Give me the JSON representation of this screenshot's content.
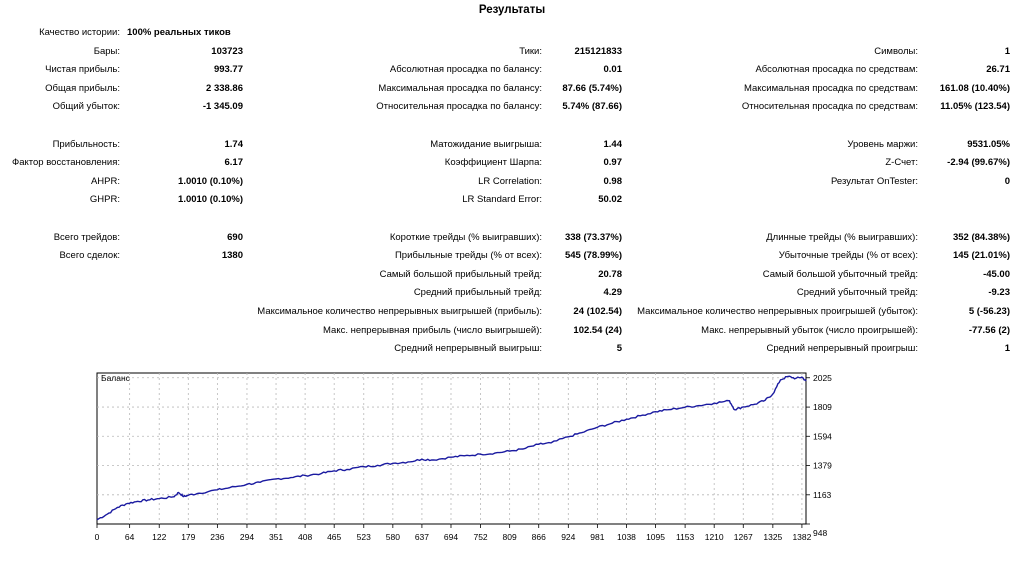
{
  "title": "Результаты",
  "stats": [
    {
      "id": "history-quality",
      "label": "Качество истории:",
      "value": "100% реальных тиков",
      "col": 1,
      "row": 0
    },
    {
      "id": "bars",
      "label": "Бары:",
      "value": "103723",
      "col": 1,
      "row": 1
    },
    {
      "id": "net-profit",
      "label": "Чистая прибыль:",
      "value": "993.77",
      "col": 1,
      "row": 2
    },
    {
      "id": "gross-profit",
      "label": "Общая прибыль:",
      "value": "2 338.86",
      "col": 1,
      "row": 3
    },
    {
      "id": "gross-loss",
      "label": "Общий убыток:",
      "value": "-1 345.09",
      "col": 1,
      "row": 4
    },
    {
      "id": "profit-factor",
      "label": "Прибыльность:",
      "value": "1.74",
      "col": 1,
      "row": 6
    },
    {
      "id": "recovery-factor",
      "label": "Фактор восстановления:",
      "value": "6.17",
      "col": 1,
      "row": 7
    },
    {
      "id": "ahpr",
      "label": "AHPR:",
      "value": "1.0010 (0.10%)",
      "col": 1,
      "row": 8
    },
    {
      "id": "ghpr",
      "label": "GHPR:",
      "value": "1.0010 (0.10%)",
      "col": 1,
      "row": 9
    },
    {
      "id": "total-trades",
      "label": "Всего трейдов:",
      "value": "690",
      "col": 1,
      "row": 11
    },
    {
      "id": "total-deals",
      "label": "Всего сделок:",
      "value": "1380",
      "col": 1,
      "row": 12
    },
    {
      "id": "ticks",
      "label": "Тики:",
      "value": "215121833",
      "col": 2,
      "row": 1
    },
    {
      "id": "balance-dd-abs",
      "label": "Абсолютная просадка по балансу:",
      "value": "0.01",
      "col": 2,
      "row": 2
    },
    {
      "id": "balance-dd-max",
      "label": "Максимальная просадка по балансу:",
      "value": "87.66 (5.74%)",
      "col": 2,
      "row": 3
    },
    {
      "id": "balance-dd-rel",
      "label": "Относительная просадка по балансу:",
      "value": "5.74% (87.66)",
      "col": 2,
      "row": 4
    },
    {
      "id": "expected-payoff",
      "label": "Матожидание выигрыша:",
      "value": "1.44",
      "col": 2,
      "row": 6
    },
    {
      "id": "sharpe",
      "label": "Коэффициент Шарпа:",
      "value": "0.97",
      "col": 2,
      "row": 7
    },
    {
      "id": "lr-correlation",
      "label": "LR Correlation:",
      "value": "0.98",
      "col": 2,
      "row": 8
    },
    {
      "id": "lr-std-error",
      "label": "LR Standard Error:",
      "value": "50.02",
      "col": 2,
      "row": 9
    },
    {
      "id": "short-trades",
      "label": "Короткие трейды (% выигравших):",
      "value": "338 (73.37%)",
      "col": 2,
      "row": 11
    },
    {
      "id": "profit-trades",
      "label": "Прибыльные трейды (% от всех):",
      "value": "545 (78.99%)",
      "col": 2,
      "row": 12
    },
    {
      "id": "largest-profit",
      "label": "Самый большой прибыльный трейд:",
      "value": "20.78",
      "col": 2,
      "row": 13
    },
    {
      "id": "avg-profit",
      "label": "Средний прибыльный трейд:",
      "value": "4.29",
      "col": 2,
      "row": 14
    },
    {
      "id": "max-consec-wins",
      "label": "Максимальное количество непрерывных выигрышей (прибыль):",
      "value": "24 (102.54)",
      "col": 2,
      "row": 15
    },
    {
      "id": "max-consec-profit",
      "label": "Макс. непрерывная прибыль (число выигрышей):",
      "value": "102.54 (24)",
      "col": 2,
      "row": 16
    },
    {
      "id": "avg-consec-wins",
      "label": "Средний непрерывный выигрыш:",
      "value": "5",
      "col": 2,
      "row": 17
    },
    {
      "id": "symbols",
      "label": "Символы:",
      "value": "1",
      "col": 3,
      "row": 1
    },
    {
      "id": "equity-dd-abs",
      "label": "Абсолютная просадка по средствам:",
      "value": "26.71",
      "col": 3,
      "row": 2
    },
    {
      "id": "equity-dd-max",
      "label": "Максимальная просадка по средствам:",
      "value": "161.08 (10.40%)",
      "col": 3,
      "row": 3
    },
    {
      "id": "equity-dd-rel",
      "label": "Относительная просадка по средствам:",
      "value": "11.05% (123.54)",
      "col": 3,
      "row": 4
    },
    {
      "id": "margin-level",
      "label": "Уровень маржи:",
      "value": "9531.05%",
      "col": 3,
      "row": 6
    },
    {
      "id": "z-score",
      "label": "Z-Счет:",
      "value": "-2.94 (99.67%)",
      "col": 3,
      "row": 7
    },
    {
      "id": "ontester",
      "label": "Результат OnTester:",
      "value": "0",
      "col": 3,
      "row": 8
    },
    {
      "id": "long-trades",
      "label": "Длинные трейды (% выигравших):",
      "value": "352 (84.38%)",
      "col": 3,
      "row": 11
    },
    {
      "id": "loss-trades",
      "label": "Убыточные трейды (% от всех):",
      "value": "145 (21.01%)",
      "col": 3,
      "row": 12
    },
    {
      "id": "largest-loss",
      "label": "Самый большой убыточный трейд:",
      "value": "-45.00",
      "col": 3,
      "row": 13
    },
    {
      "id": "avg-loss",
      "label": "Средний убыточный трейд:",
      "value": "-9.23",
      "col": 3,
      "row": 14
    },
    {
      "id": "max-consec-losses",
      "label": "Максимальное количество непрерывных проигрышей (убыток):",
      "value": "5 (-56.23)",
      "col": 3,
      "row": 15
    },
    {
      "id": "max-consec-loss",
      "label": "Макс. непрерывный убыток (число проигрышей):",
      "value": "-77.56 (2)",
      "col": 3,
      "row": 16
    },
    {
      "id": "avg-consec-losses",
      "label": "Средний непрерывный проигрыш:",
      "value": "1",
      "col": 3,
      "row": 17
    }
  ],
  "chart_data": {
    "type": "line",
    "series": [
      {
        "name": "Баланс",
        "color": "#1a1aa0"
      }
    ],
    "x_ticks": [
      0,
      64,
      122,
      179,
      236,
      294,
      351,
      408,
      465,
      523,
      580,
      637,
      694,
      752,
      809,
      866,
      924,
      981,
      1038,
      1095,
      1153,
      1210,
      1267,
      1325,
      1382
    ],
    "y_ticks": [
      948,
      1163,
      1379,
      1594,
      1809,
      2025
    ],
    "xlim": [
      0,
      1390
    ],
    "ylim": [
      948,
      2060
    ],
    "grid": true,
    "approx_points": [
      [
        0,
        980
      ],
      [
        20,
        1020
      ],
      [
        40,
        1070
      ],
      [
        60,
        1100
      ],
      [
        80,
        1115
      ],
      [
        100,
        1125
      ],
      [
        122,
        1135
      ],
      [
        150,
        1148
      ],
      [
        160,
        1180
      ],
      [
        170,
        1150
      ],
      [
        179,
        1160
      ],
      [
        200,
        1175
      ],
      [
        236,
        1200
      ],
      [
        260,
        1215
      ],
      [
        294,
        1240
      ],
      [
        320,
        1255
      ],
      [
        351,
        1280
      ],
      [
        380,
        1290
      ],
      [
        408,
        1305
      ],
      [
        440,
        1320
      ],
      [
        465,
        1340
      ],
      [
        490,
        1350
      ],
      [
        523,
        1370
      ],
      [
        550,
        1380
      ],
      [
        580,
        1395
      ],
      [
        610,
        1405
      ],
      [
        637,
        1425
      ],
      [
        660,
        1420
      ],
      [
        694,
        1440
      ],
      [
        720,
        1450
      ],
      [
        752,
        1462
      ],
      [
        780,
        1470
      ],
      [
        809,
        1485
      ],
      [
        835,
        1500
      ],
      [
        866,
        1535
      ],
      [
        890,
        1545
      ],
      [
        924,
        1590
      ],
      [
        950,
        1620
      ],
      [
        981,
        1660
      ],
      [
        1010,
        1690
      ],
      [
        1038,
        1720
      ],
      [
        1065,
        1745
      ],
      [
        1095,
        1775
      ],
      [
        1120,
        1790
      ],
      [
        1153,
        1808
      ],
      [
        1180,
        1820
      ],
      [
        1210,
        1838
      ],
      [
        1240,
        1855
      ],
      [
        1250,
        1790
      ],
      [
        1267,
        1810
      ],
      [
        1290,
        1830
      ],
      [
        1310,
        1860
      ],
      [
        1325,
        1905
      ],
      [
        1340,
        2010
      ],
      [
        1355,
        2035
      ],
      [
        1370,
        2020
      ],
      [
        1382,
        2030
      ],
      [
        1390,
        2000
      ]
    ]
  }
}
